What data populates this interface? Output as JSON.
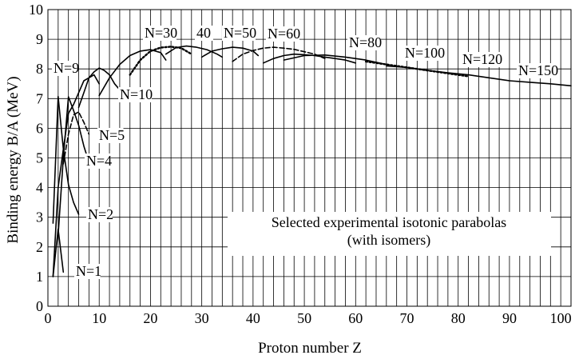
{
  "chart_data": {
    "type": "line",
    "title": "",
    "xlabel": "Proton number Z",
    "ylabel": "Binding energy B/A (MeV)",
    "xlim": [
      0,
      102
    ],
    "ylim": [
      0,
      10
    ],
    "x_ticks": [
      "0",
      "10",
      "20",
      "30",
      "40",
      "50",
      "60",
      "70",
      "80",
      "90",
      "100"
    ],
    "y_ticks": [
      "0",
      "1",
      "2",
      "3",
      "4",
      "5",
      "6",
      "7",
      "8",
      "9",
      "10"
    ],
    "grid": "vertical lines every 2 units of Z, horizontal lines every 1 MeV",
    "legend_text": [
      "Selected experimental isotonic parabolas",
      "(with isomers)"
    ],
    "series": [
      {
        "name": "N=1",
        "style": "solid",
        "x": [
          1,
          2,
          3
        ],
        "y": [
          1.0,
          2.6,
          1.15
        ]
      },
      {
        "name": "N=2",
        "style": "solid",
        "x": [
          1,
          2,
          3,
          4,
          5,
          6
        ],
        "y": [
          2.8,
          7.07,
          5.3,
          4.1,
          3.5,
          3.1
        ]
      },
      {
        "name": "N=4",
        "style": "solid",
        "x": [
          2,
          3,
          4,
          5,
          6,
          7,
          8
        ],
        "y": [
          2.4,
          5.0,
          7.06,
          6.6,
          6.1,
          5.4,
          4.85
        ]
      },
      {
        "name": "N=5",
        "style": "dashed",
        "x": [
          3,
          4,
          5,
          6,
          7,
          8
        ],
        "y": [
          4.8,
          5.8,
          6.45,
          6.55,
          6.2,
          5.8
        ]
      },
      {
        "name": "N=9",
        "style": "solid",
        "x": [
          1,
          2,
          3,
          4,
          5,
          6,
          7,
          8,
          9,
          10
        ],
        "y": [
          1.0,
          4.0,
          5.3,
          6.5,
          6.8,
          7.2,
          7.6,
          7.7,
          7.8,
          7.5
        ]
      },
      {
        "name": "N=10",
        "style": "solid",
        "x": [
          6,
          7,
          8,
          9,
          10,
          11,
          12,
          13,
          14,
          15
        ],
        "y": [
          6.7,
          7.2,
          7.7,
          7.9,
          8.03,
          7.95,
          7.8,
          7.5,
          7.3,
          7.15
        ]
      },
      {
        "name": "N=30",
        "style": "solid",
        "x": [
          10,
          12,
          14,
          16,
          18,
          20,
          22,
          23
        ],
        "y": [
          7.1,
          7.7,
          8.15,
          8.45,
          8.6,
          8.65,
          8.55,
          8.3
        ]
      },
      {
        "name": "",
        "style": "dotted",
        "x": [
          16,
          18,
          20,
          22,
          24,
          26,
          27,
          28
        ],
        "y": [
          7.8,
          8.3,
          8.6,
          8.72,
          8.75,
          8.7,
          8.6,
          8.5
        ]
      },
      {
        "name": "40",
        "style": "solid",
        "x": [
          23,
          25,
          27,
          29,
          31,
          33,
          34
        ],
        "y": [
          8.5,
          8.72,
          8.77,
          8.73,
          8.65,
          8.5,
          8.4
        ]
      },
      {
        "name": "N=50",
        "style": "solid",
        "x": [
          30,
          32,
          34,
          36,
          38,
          40,
          41
        ],
        "y": [
          8.4,
          8.6,
          8.68,
          8.73,
          8.7,
          8.6,
          8.45
        ]
      },
      {
        "name": "N=60",
        "style": "dashed",
        "x": [
          36,
          38,
          40,
          42,
          44,
          46,
          48,
          50,
          52,
          54
        ],
        "y": [
          8.25,
          8.5,
          8.62,
          8.7,
          8.73,
          8.7,
          8.66,
          8.58,
          8.5,
          8.35
        ]
      },
      {
        "name": "",
        "style": "solid",
        "x": [
          42,
          44,
          46,
          48,
          50,
          52,
          54,
          56,
          58,
          60
        ],
        "y": [
          8.2,
          8.35,
          8.45,
          8.5,
          8.48,
          8.45,
          8.4,
          8.35,
          8.3,
          8.2
        ]
      },
      {
        "name": "N=80",
        "style": "solid",
        "x": [
          46,
          50,
          54,
          58,
          62,
          66
        ],
        "y": [
          8.3,
          8.45,
          8.47,
          8.4,
          8.3,
          8.15
        ]
      },
      {
        "name": "N=100",
        "style": "dotted",
        "x": [
          62,
          66,
          70,
          74,
          78,
          82
        ],
        "y": [
          8.25,
          8.15,
          8.05,
          7.95,
          7.85,
          7.75
        ]
      },
      {
        "name": "N=120",
        "style": "solid",
        "x": [
          66,
          70,
          74,
          78,
          82,
          86,
          90
        ],
        "y": [
          8.1,
          8.05,
          7.95,
          7.87,
          7.8,
          7.7,
          7.6
        ]
      },
      {
        "name": "N=150",
        "style": "solid",
        "x": [
          90,
          94,
          98,
          102
        ],
        "y": [
          7.6,
          7.55,
          7.5,
          7.43
        ]
      }
    ]
  }
}
